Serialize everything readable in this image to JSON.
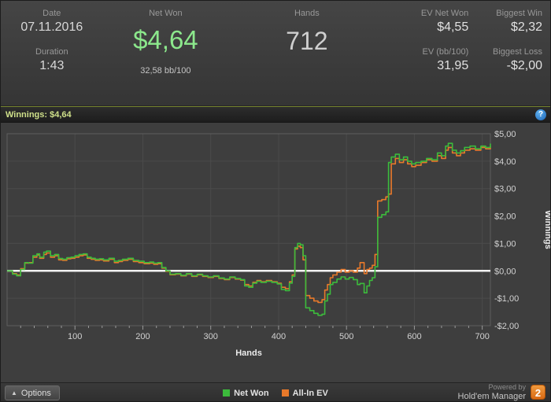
{
  "stats": {
    "date_label": "Date",
    "date_value": "07.11.2016",
    "duration_label": "Duration",
    "duration_value": "1:43",
    "net_won_label": "Net Won",
    "net_won_value": "$4,64",
    "net_won_sub": "32,58 bb/100",
    "hands_label": "Hands",
    "hands_value": "712",
    "ev_net_won_label": "EV Net Won",
    "ev_net_won_value": "$4,55",
    "ev_bb_label": "EV (bb/100)",
    "ev_bb_value": "31,95",
    "biggest_win_label": "Biggest Win",
    "biggest_win_value": "$2,32",
    "biggest_loss_label": "Biggest Loss",
    "biggest_loss_value": "-$2,00"
  },
  "title_bar": {
    "text": "Winnings: $4,64",
    "help_icon": "?"
  },
  "chart_data": {
    "type": "line",
    "title": "Winnings: $4,64",
    "xlabel": "Hands",
    "ylabel": "Winnings",
    "xlim": [
      0,
      712
    ],
    "ylim": [
      -2,
      5
    ],
    "xticks": [
      100,
      200,
      300,
      400,
      500,
      600,
      700
    ],
    "yticks": [
      5,
      4,
      3,
      2,
      1,
      0,
      -1,
      -2
    ],
    "ytick_labels": [
      "$5,00",
      "$4,00",
      "$3,00",
      "$2,00",
      "$1,00",
      "$0,00",
      "-$1,00",
      "-$2,00"
    ],
    "zero_line": 0,
    "grid": true,
    "legend_position": "bottom",
    "series": [
      {
        "name": "Net Won",
        "color": "#3cbb3c",
        "points": [
          [
            0,
            0
          ],
          [
            8,
            -0.12
          ],
          [
            14,
            -0.18
          ],
          [
            20,
            0.05
          ],
          [
            26,
            0.3
          ],
          [
            32,
            0.28
          ],
          [
            38,
            0.55
          ],
          [
            44,
            0.62
          ],
          [
            48,
            0.5
          ],
          [
            54,
            0.68
          ],
          [
            58,
            0.72
          ],
          [
            64,
            0.55
          ],
          [
            70,
            0.6
          ],
          [
            76,
            0.45
          ],
          [
            82,
            0.42
          ],
          [
            88,
            0.48
          ],
          [
            94,
            0.5
          ],
          [
            100,
            0.55
          ],
          [
            106,
            0.6
          ],
          [
            112,
            0.62
          ],
          [
            118,
            0.5
          ],
          [
            124,
            0.46
          ],
          [
            130,
            0.42
          ],
          [
            136,
            0.44
          ],
          [
            142,
            0.4
          ],
          [
            150,
            0.46
          ],
          [
            158,
            0.35
          ],
          [
            164,
            0.38
          ],
          [
            170,
            0.42
          ],
          [
            178,
            0.46
          ],
          [
            186,
            0.38
          ],
          [
            194,
            0.35
          ],
          [
            202,
            0.3
          ],
          [
            210,
            0.32
          ],
          [
            216,
            0.28
          ],
          [
            222,
            0.3
          ],
          [
            228,
            0.12
          ],
          [
            234,
            0.0
          ],
          [
            240,
            -0.12
          ],
          [
            248,
            -0.1
          ],
          [
            256,
            -0.16
          ],
          [
            264,
            -0.1
          ],
          [
            272,
            -0.18
          ],
          [
            280,
            -0.12
          ],
          [
            288,
            -0.18
          ],
          [
            296,
            -0.22
          ],
          [
            304,
            -0.18
          ],
          [
            312,
            -0.26
          ],
          [
            320,
            -0.3
          ],
          [
            328,
            -0.22
          ],
          [
            336,
            -0.28
          ],
          [
            344,
            -0.32
          ],
          [
            350,
            -0.55
          ],
          [
            356,
            -0.6
          ],
          [
            362,
            -0.45
          ],
          [
            368,
            -0.38
          ],
          [
            374,
            -0.42
          ],
          [
            382,
            -0.38
          ],
          [
            390,
            -0.42
          ],
          [
            398,
            -0.48
          ],
          [
            404,
            -0.68
          ],
          [
            410,
            -0.72
          ],
          [
            416,
            -0.45
          ],
          [
            420,
            -0.2
          ],
          [
            424,
            0.85
          ],
          [
            428,
            1.0
          ],
          [
            432,
            0.95
          ],
          [
            436,
            0.55
          ],
          [
            440,
            -1.35
          ],
          [
            446,
            -1.45
          ],
          [
            452,
            -1.55
          ],
          [
            458,
            -1.62
          ],
          [
            464,
            -1.58
          ],
          [
            468,
            -1.1
          ],
          [
            472,
            -0.85
          ],
          [
            476,
            -0.5
          ],
          [
            480,
            -0.42
          ],
          [
            486,
            -0.3
          ],
          [
            492,
            -0.22
          ],
          [
            498,
            -0.3
          ],
          [
            504,
            -0.24
          ],
          [
            510,
            -0.32
          ],
          [
            516,
            -0.5
          ],
          [
            520,
            -0.46
          ],
          [
            526,
            -0.8
          ],
          [
            530,
            -0.55
          ],
          [
            534,
            -0.35
          ],
          [
            538,
            -0.25
          ],
          [
            542,
            0.15
          ],
          [
            546,
            1.95
          ],
          [
            552,
            2.05
          ],
          [
            558,
            2.15
          ],
          [
            562,
            3.95
          ],
          [
            566,
            4.15
          ],
          [
            572,
            4.25
          ],
          [
            578,
            4.05
          ],
          [
            584,
            4.15
          ],
          [
            590,
            4.0
          ],
          [
            596,
            3.9
          ],
          [
            602,
            3.95
          ],
          [
            610,
            4.0
          ],
          [
            618,
            4.1
          ],
          [
            626,
            4.05
          ],
          [
            634,
            4.3
          ],
          [
            640,
            4.2
          ],
          [
            646,
            4.55
          ],
          [
            650,
            4.65
          ],
          [
            656,
            4.4
          ],
          [
            662,
            4.3
          ],
          [
            668,
            4.38
          ],
          [
            674,
            4.5
          ],
          [
            682,
            4.55
          ],
          [
            690,
            4.45
          ],
          [
            698,
            4.55
          ],
          [
            705,
            4.5
          ],
          [
            712,
            4.64
          ]
        ]
      },
      {
        "name": "All-In EV",
        "color": "#e8792a",
        "points": [
          [
            0,
            0
          ],
          [
            8,
            -0.1
          ],
          [
            14,
            -0.15
          ],
          [
            20,
            0.08
          ],
          [
            26,
            0.28
          ],
          [
            32,
            0.3
          ],
          [
            38,
            0.5
          ],
          [
            44,
            0.58
          ],
          [
            48,
            0.46
          ],
          [
            54,
            0.6
          ],
          [
            58,
            0.65
          ],
          [
            64,
            0.5
          ],
          [
            70,
            0.55
          ],
          [
            76,
            0.4
          ],
          [
            82,
            0.38
          ],
          [
            88,
            0.44
          ],
          [
            94,
            0.46
          ],
          [
            100,
            0.5
          ],
          [
            106,
            0.55
          ],
          [
            112,
            0.58
          ],
          [
            118,
            0.46
          ],
          [
            124,
            0.42
          ],
          [
            130,
            0.38
          ],
          [
            136,
            0.4
          ],
          [
            142,
            0.36
          ],
          [
            150,
            0.42
          ],
          [
            158,
            0.3
          ],
          [
            164,
            0.34
          ],
          [
            170,
            0.38
          ],
          [
            178,
            0.42
          ],
          [
            186,
            0.34
          ],
          [
            194,
            0.3
          ],
          [
            202,
            0.26
          ],
          [
            210,
            0.28
          ],
          [
            216,
            0.24
          ],
          [
            222,
            0.26
          ],
          [
            228,
            0.1
          ],
          [
            234,
            -0.02
          ],
          [
            240,
            -0.14
          ],
          [
            248,
            -0.12
          ],
          [
            256,
            -0.18
          ],
          [
            264,
            -0.12
          ],
          [
            272,
            -0.2
          ],
          [
            280,
            -0.14
          ],
          [
            288,
            -0.2
          ],
          [
            296,
            -0.24
          ],
          [
            304,
            -0.2
          ],
          [
            312,
            -0.28
          ],
          [
            320,
            -0.32
          ],
          [
            328,
            -0.24
          ],
          [
            336,
            -0.3
          ],
          [
            344,
            -0.34
          ],
          [
            350,
            -0.5
          ],
          [
            356,
            -0.55
          ],
          [
            362,
            -0.42
          ],
          [
            368,
            -0.35
          ],
          [
            374,
            -0.4
          ],
          [
            382,
            -0.35
          ],
          [
            390,
            -0.4
          ],
          [
            398,
            -0.45
          ],
          [
            404,
            -0.6
          ],
          [
            410,
            -0.65
          ],
          [
            416,
            -0.4
          ],
          [
            420,
            -0.15
          ],
          [
            424,
            0.8
          ],
          [
            428,
            0.9
          ],
          [
            432,
            0.85
          ],
          [
            436,
            0.4
          ],
          [
            440,
            -0.9
          ],
          [
            446,
            -1.0
          ],
          [
            452,
            -1.1
          ],
          [
            458,
            -1.15
          ],
          [
            464,
            -1.05
          ],
          [
            468,
            -0.7
          ],
          [
            472,
            -0.5
          ],
          [
            476,
            -0.25
          ],
          [
            480,
            -0.15
          ],
          [
            486,
            -0.05
          ],
          [
            492,
            0.05
          ],
          [
            498,
            -0.05
          ],
          [
            504,
            0.0
          ],
          [
            510,
            -0.05
          ],
          [
            516,
            0.1
          ],
          [
            520,
            0.3
          ],
          [
            526,
            -0.1
          ],
          [
            530,
            0.05
          ],
          [
            534,
            0.1
          ],
          [
            538,
            0.2
          ],
          [
            542,
            0.6
          ],
          [
            546,
            2.55
          ],
          [
            552,
            2.6
          ],
          [
            558,
            2.7
          ],
          [
            562,
            2.8
          ],
          [
            566,
            3.9
          ],
          [
            572,
            4.1
          ],
          [
            578,
            3.95
          ],
          [
            584,
            4.05
          ],
          [
            590,
            3.9
          ],
          [
            596,
            3.8
          ],
          [
            602,
            3.85
          ],
          [
            610,
            3.95
          ],
          [
            618,
            4.05
          ],
          [
            626,
            4.0
          ],
          [
            634,
            4.2
          ],
          [
            640,
            4.1
          ],
          [
            646,
            4.4
          ],
          [
            650,
            4.5
          ],
          [
            656,
            4.3
          ],
          [
            662,
            4.2
          ],
          [
            668,
            4.3
          ],
          [
            674,
            4.4
          ],
          [
            682,
            4.45
          ],
          [
            690,
            4.4
          ],
          [
            698,
            4.5
          ],
          [
            705,
            4.45
          ],
          [
            712,
            4.55
          ]
        ]
      }
    ]
  },
  "legend": [
    {
      "label": "Net Won",
      "color": "#3cbb3c"
    },
    {
      "label": "All-In EV",
      "color": "#e8792a"
    }
  ],
  "footer": {
    "options_label": "Options",
    "options_arrow": "▲",
    "powered_by": "Powered by",
    "brand": "Hold'em Manager",
    "brand_badge": "2"
  },
  "colors": {
    "net_won_green": "#8ce88c",
    "title_green": "#cfe08a",
    "panel_bg": "#3e3e3e",
    "grid": "#4b4b4b",
    "zero_line": "#f2f2f2",
    "badge_orange": "#e87c1e"
  }
}
